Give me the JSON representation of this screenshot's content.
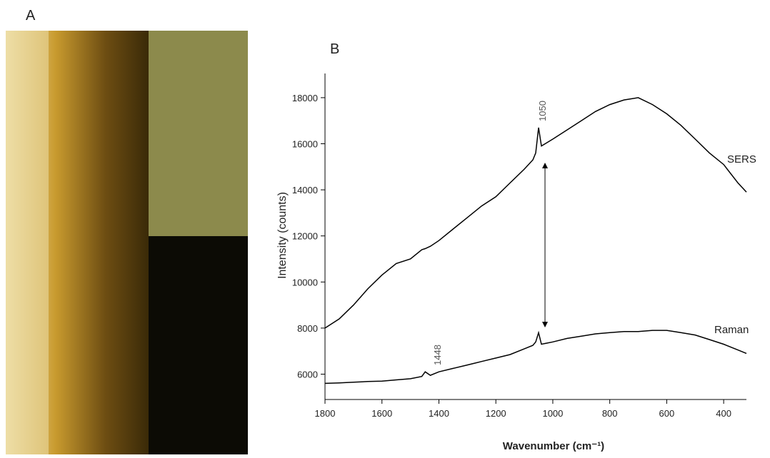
{
  "panel_labels": [
    "A",
    "B"
  ],
  "chart_data": {
    "type": "line",
    "x_label": "Wavenumber (cm⁻¹)",
    "y_label": "Intensity (counts)",
    "x": [
      1800,
      1750,
      1700,
      1650,
      1600,
      1550,
      1500,
      1460,
      1448,
      1430,
      1400,
      1350,
      1300,
      1250,
      1200,
      1150,
      1100,
      1070,
      1060,
      1050,
      1040,
      1000,
      950,
      900,
      850,
      800,
      750,
      700,
      650,
      600,
      550,
      500,
      450,
      400,
      350,
      320
    ],
    "series": [
      {
        "name": "SERS",
        "color": "#000000",
        "values": [
          8000,
          8400,
          9000,
          9700,
          10300,
          10800,
          11000,
          11400,
          11450,
          11550,
          11800,
          12300,
          12800,
          13300,
          13700,
          14300,
          14900,
          15300,
          15600,
          16700,
          15900,
          16200,
          16600,
          17000,
          17400,
          17700,
          17900,
          18000,
          17700,
          17300,
          16800,
          16200,
          15600,
          15100,
          14300,
          13900
        ]
      },
      {
        "name": "Raman",
        "color": "#000000",
        "values": [
          5600,
          5620,
          5650,
          5680,
          5700,
          5750,
          5800,
          5900,
          6100,
          5950,
          6100,
          6250,
          6400,
          6550,
          6700,
          6850,
          7100,
          7250,
          7400,
          7800,
          7300,
          7400,
          7550,
          7650,
          7750,
          7800,
          7850,
          7850,
          7900,
          7900,
          7800,
          7700,
          7500,
          7300,
          7050,
          6900
        ]
      }
    ],
    "annotations": [
      "1050",
      "1448"
    ],
    "xlim": [
      1800,
      300
    ],
    "ylim": [
      4900,
      19050
    ],
    "xticks": [
      1800,
      1600,
      1400,
      1200,
      1000,
      800,
      600,
      400
    ],
    "yticks": [
      6000,
      8000,
      10000,
      12000,
      14000,
      16000,
      18000
    ]
  }
}
